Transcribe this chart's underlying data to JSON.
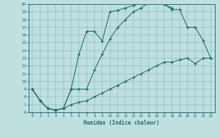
{
  "xlabel": "Humidex (Indice chaleur)",
  "bg_color": "#c0e0e0",
  "line_color": "#1a6b6b",
  "grid_color": "#4a9a9a",
  "xlim": [
    -0.5,
    23.5
  ],
  "ylim": [
    6,
    20
  ],
  "yticks": [
    6,
    7,
    8,
    9,
    10,
    11,
    12,
    13,
    14,
    15,
    16,
    17,
    18,
    19,
    20
  ],
  "xticks": [
    0,
    1,
    2,
    3,
    4,
    5,
    6,
    7,
    8,
    9,
    10,
    11,
    12,
    13,
    14,
    15,
    16,
    17,
    18,
    19,
    20,
    21,
    22,
    23
  ],
  "curves": [
    {
      "x": [
        0,
        1,
        2,
        3,
        4,
        5,
        6,
        7,
        8,
        9,
        10,
        11,
        12,
        13,
        14,
        15,
        16,
        17,
        18
      ],
      "y": [
        9.0,
        7.5,
        6.5,
        6.3,
        6.5,
        9.0,
        13.5,
        16.5,
        16.5,
        15.2,
        19.0,
        19.2,
        19.5,
        19.8,
        20.2,
        20.3,
        20.2,
        20.0,
        19.5
      ]
    },
    {
      "x": [
        0,
        1,
        2,
        3,
        4,
        5,
        6,
        7,
        8,
        9,
        10,
        11,
        12,
        13,
        14,
        15,
        16,
        17,
        18,
        19,
        20,
        21,
        22,
        23
      ],
      "y": [
        9.0,
        7.5,
        6.5,
        6.3,
        6.5,
        9.0,
        9.0,
        9.0,
        11.5,
        13.5,
        15.5,
        17.0,
        18.0,
        19.0,
        19.5,
        20.2,
        20.2,
        20.0,
        19.3,
        19.3,
        17.0,
        17.0,
        15.3,
        13.0
      ]
    },
    {
      "x": [
        0,
        1,
        2,
        3,
        4,
        5,
        6,
        7,
        8,
        9,
        10,
        11,
        12,
        13,
        14,
        15,
        16,
        17,
        18,
        19,
        20,
        21,
        22,
        23
      ],
      "y": [
        9.0,
        7.5,
        6.5,
        6.3,
        6.5,
        7.0,
        7.3,
        7.5,
        8.0,
        8.5,
        9.0,
        9.5,
        10.0,
        10.5,
        11.0,
        11.5,
        12.0,
        12.5,
        12.5,
        12.8,
        13.0,
        12.3,
        13.0,
        13.0
      ]
    }
  ]
}
